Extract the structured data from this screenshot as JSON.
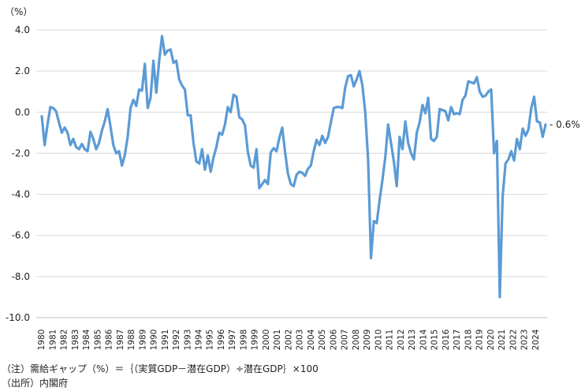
{
  "chart_data": {
    "type": "line",
    "title": "",
    "ylabel": "（%）",
    "xlabel": "",
    "ylim": [
      -10.0,
      4.0
    ],
    "yticks": [
      {
        "value": 4.0,
        "label": "4.0"
      },
      {
        "value": 2.0,
        "label": "2.0"
      },
      {
        "value": 0.0,
        "label": "0.0"
      },
      {
        "value": -2.0,
        "label": "-2.0"
      },
      {
        "value": -4.0,
        "label": "-4.0"
      },
      {
        "value": -6.0,
        "label": "-6.0"
      },
      {
        "value": -8.0,
        "label": "-8.0"
      },
      {
        "value": -10.0,
        "label": "-10.0"
      }
    ],
    "xticks": [
      "1980",
      "1981",
      "1982",
      "1983",
      "1984",
      "1985",
      "1986",
      "1987",
      "1988",
      "1989",
      "1990",
      "1991",
      "1992",
      "1993",
      "1994",
      "1995",
      "1996",
      "1997",
      "1998",
      "1999",
      "2000",
      "2001",
      "2002",
      "2003",
      "2004",
      "2005",
      "2006",
      "2007",
      "2008",
      "2009",
      "2010",
      "2011",
      "2012",
      "2013",
      "2014",
      "2015",
      "2016",
      "2017",
      "2018",
      "2019",
      "2020",
      "2021",
      "2022",
      "2023",
      "2024"
    ],
    "grid": true,
    "line_color": "#5b9bd5",
    "end_label": "- 0.6%",
    "series": [
      {
        "values": [
          -0.2,
          -1.6,
          -0.6,
          0.25,
          0.2,
          0.05,
          -0.5,
          -1.0,
          -0.75,
          -1.0,
          -1.6,
          -1.3,
          -1.7,
          -1.8,
          -1.55,
          -1.8,
          -1.9,
          -0.95,
          -1.3,
          -1.8,
          -1.5,
          -0.9,
          -0.45,
          0.15,
          -0.7,
          -1.6,
          -2.0,
          -1.9,
          -2.6,
          -2.1,
          -1.2,
          0.2,
          0.6,
          0.3,
          1.1,
          1.05,
          2.35,
          0.2,
          0.7,
          2.5,
          0.95,
          2.5,
          3.7,
          2.8,
          3.0,
          3.05,
          2.4,
          2.5,
          1.6,
          1.3,
          1.1,
          -0.15,
          -0.15,
          -1.5,
          -2.4,
          -2.5,
          -1.8,
          -2.8,
          -2.1,
          -2.9,
          -2.2,
          -1.7,
          -1.0,
          -1.1,
          -0.6,
          0.25,
          0.0,
          0.85,
          0.75,
          -0.25,
          -0.35,
          -0.65,
          -1.95,
          -2.6,
          -2.7,
          -1.8,
          -3.7,
          -3.5,
          -3.3,
          -3.5,
          -1.95,
          -1.75,
          -1.9,
          -1.25,
          -0.75,
          -1.95,
          -3.0,
          -3.5,
          -3.6,
          -3.05,
          -2.9,
          -2.95,
          -3.1,
          -2.75,
          -2.6,
          -1.9,
          -1.35,
          -1.6,
          -1.15,
          -1.5,
          -1.2,
          -0.5,
          0.2,
          0.25,
          0.25,
          0.2,
          1.2,
          1.75,
          1.8,
          1.25,
          1.6,
          2.0,
          1.3,
          0.0,
          -2.3,
          -7.1,
          -5.3,
          -5.4,
          -4.3,
          -3.3,
          -2.2,
          -0.6,
          -1.5,
          -2.4,
          -3.6,
          -1.2,
          -1.8,
          -0.45,
          -1.5,
          -2.0,
          -2.3,
          -1.0,
          -0.5,
          0.35,
          -0.05,
          0.7,
          -1.3,
          -1.4,
          -1.2,
          0.15,
          0.1,
          0.05,
          -0.4,
          0.25,
          -0.1,
          -0.05,
          -0.1,
          0.6,
          0.8,
          1.5,
          1.45,
          1.4,
          1.7,
          1.0,
          0.75,
          0.8,
          1.0,
          1.1,
          -2.0,
          -1.4,
          -9.0,
          -4.1,
          -2.5,
          -2.3,
          -1.9,
          -2.35,
          -1.3,
          -1.8,
          -0.8,
          -1.15,
          -0.85,
          0.2,
          0.75,
          -0.45,
          -0.5,
          -1.2,
          -0.6
        ]
      }
    ]
  },
  "notes": {
    "line1": "（注）需給ギャップ（%）＝｛（実質GDP－潜在GDP）÷潜在GDP｝×100",
    "line2": "（出所）内閣府"
  }
}
